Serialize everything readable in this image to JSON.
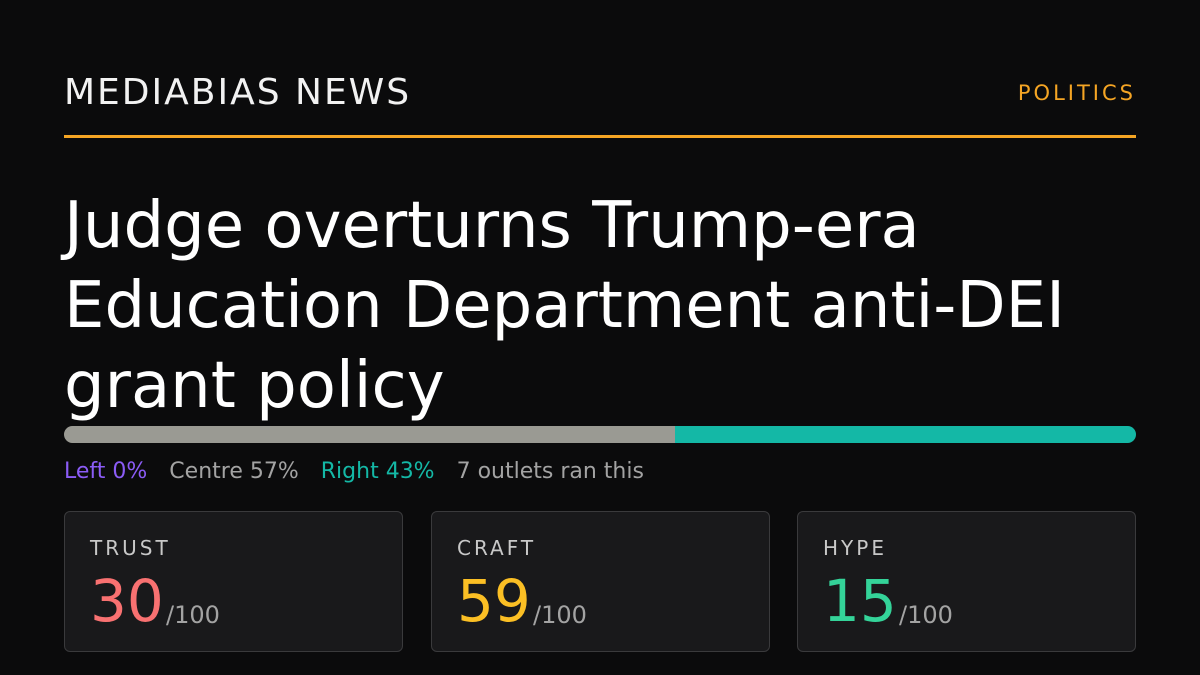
{
  "header": {
    "brand": "MEDIABIAS NEWS",
    "section": "POLITICS"
  },
  "headline": "Judge overturns Trump-era Education Department anti-DEI grant policy",
  "bias": {
    "left_percent": 0,
    "centre_percent": 57,
    "right_percent": 43,
    "left_label": "Left 0%",
    "centre_label": "Centre 57%",
    "right_label": "Right 43%",
    "outlets_text": "7 outlets ran this",
    "colors": {
      "left": "#8b5cf6",
      "centre": "#9a9a93",
      "right": "#14b8a6"
    }
  },
  "scores": [
    {
      "label": "TRUST",
      "value": "30",
      "denominator": "/100",
      "color": "#f87171"
    },
    {
      "label": "CRAFT",
      "value": "59",
      "denominator": "/100",
      "color": "#fbbf24"
    },
    {
      "label": "HYPE",
      "value": "15",
      "denominator": "/100",
      "color": "#34d399"
    }
  ],
  "accent_color": "#f5a524"
}
